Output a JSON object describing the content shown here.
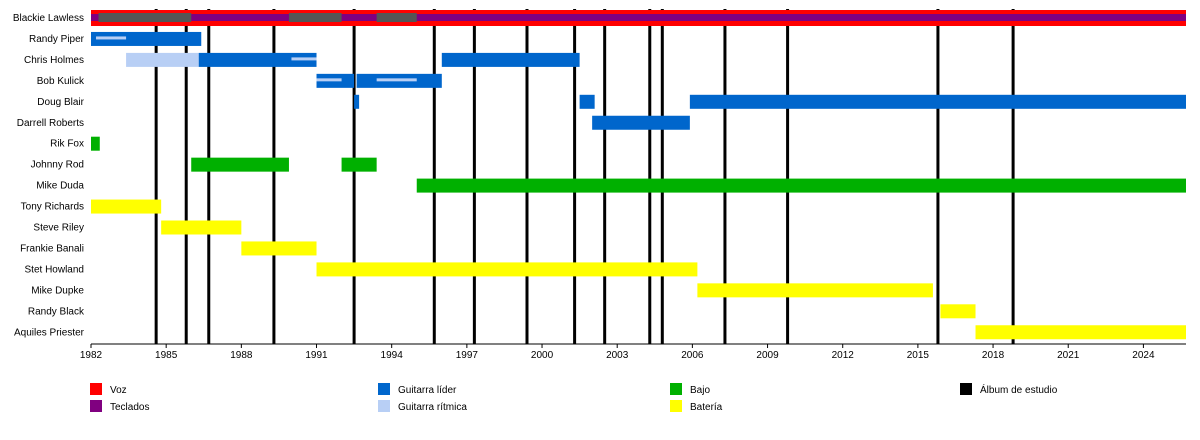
{
  "chart_data": {
    "type": "timeline",
    "title": "",
    "xlabel": "",
    "ylabel": "",
    "xlim": [
      1982,
      2025.7
    ],
    "x_ticks": [
      1982,
      1985,
      1988,
      1991,
      1994,
      1997,
      2000,
      2003,
      2006,
      2009,
      2012,
      2015,
      2018,
      2021,
      2024
    ],
    "grid": false,
    "legend_position": "bottom",
    "colors": {
      "voz": "#ff0000",
      "teclados": "#800080",
      "guitarra_lider": "#0066cc",
      "guitarra_ritmica": "#b8cff5",
      "bajo": "#00b000",
      "bateria": "#ffff00",
      "album": "#000000",
      "overlay": "#555555"
    },
    "members": [
      "Blackie Lawless",
      "Randy Piper",
      "Chris Holmes",
      "Bob Kulick",
      "Doug Blair",
      "Darrell Roberts",
      "Rik Fox",
      "Johnny Rod",
      "Mike Duda",
      "Tony Richards",
      "Steve Riley",
      "Frankie Banali",
      "Stet Howland",
      "Mike Dupke",
      "Randy Black",
      "Aquiles Priester"
    ],
    "bars": [
      {
        "member": "Blackie Lawless",
        "role": "voz",
        "start": 1982,
        "end": 2025.7,
        "layer": "outer"
      },
      {
        "member": "Blackie Lawless",
        "role": "teclados",
        "start": 1982,
        "end": 2025.7,
        "layer": "inner"
      },
      {
        "member": "Blackie Lawless",
        "role": "overlay",
        "start": 1982.3,
        "end": 1986.0,
        "layer": "thin"
      },
      {
        "member": "Blackie Lawless",
        "role": "overlay",
        "start": 1989.9,
        "end": 1992.0,
        "layer": "thin"
      },
      {
        "member": "Blackie Lawless",
        "role": "overlay",
        "start": 1993.4,
        "end": 1995.0,
        "layer": "thin"
      },
      {
        "member": "Randy Piper",
        "role": "guitarra_lider",
        "start": 1982,
        "end": 1986.4,
        "layer": "main"
      },
      {
        "member": "Randy Piper",
        "role": "guitarra_ritmica",
        "start": 1982.2,
        "end": 1983.4,
        "layer": "thin"
      },
      {
        "member": "Chris Holmes",
        "role": "guitarra_ritmica",
        "start": 1983.4,
        "end": 1986.3,
        "layer": "main"
      },
      {
        "member": "Chris Holmes",
        "role": "guitarra_lider",
        "start": 1986.3,
        "end": 1991.0,
        "layer": "main"
      },
      {
        "member": "Chris Holmes",
        "role": "guitarra_ritmica",
        "start": 1990.0,
        "end": 1991.0,
        "layer": "thin"
      },
      {
        "member": "Chris Holmes",
        "role": "guitarra_lider",
        "start": 1996.0,
        "end": 2001.5,
        "layer": "main"
      },
      {
        "member": "Bob Kulick",
        "role": "guitarra_lider",
        "start": 1991.0,
        "end": 1992.5,
        "layer": "main"
      },
      {
        "member": "Bob Kulick",
        "role": "guitarra_ritmica",
        "start": 1991.0,
        "end": 1992.0,
        "layer": "thin"
      },
      {
        "member": "Bob Kulick",
        "role": "guitarra_lider",
        "start": 1992.6,
        "end": 1996.0,
        "layer": "main"
      },
      {
        "member": "Bob Kulick",
        "role": "guitarra_ritmica",
        "start": 1993.4,
        "end": 1995.0,
        "layer": "thin"
      },
      {
        "member": "Doug Blair",
        "role": "guitarra_lider",
        "start": 1992.5,
        "end": 1992.7,
        "layer": "main"
      },
      {
        "member": "Doug Blair",
        "role": "guitarra_lider",
        "start": 2001.5,
        "end": 2002.1,
        "layer": "main"
      },
      {
        "member": "Doug Blair",
        "role": "guitarra_lider",
        "start": 2005.9,
        "end": 2025.7,
        "layer": "main"
      },
      {
        "member": "Darrell Roberts",
        "role": "guitarra_lider",
        "start": 2002.0,
        "end": 2005.9,
        "layer": "main"
      },
      {
        "member": "Rik Fox",
        "role": "bajo",
        "start": 1982,
        "end": 1982.35,
        "layer": "main"
      },
      {
        "member": "Johnny Rod",
        "role": "bajo",
        "start": 1986.0,
        "end": 1989.9,
        "layer": "main"
      },
      {
        "member": "Johnny Rod",
        "role": "bajo",
        "start": 1992.0,
        "end": 1993.4,
        "layer": "main"
      },
      {
        "member": "Mike Duda",
        "role": "bajo",
        "start": 1995.0,
        "end": 2025.7,
        "layer": "main"
      },
      {
        "member": "Tony Richards",
        "role": "bateria",
        "start": 1982,
        "end": 1984.8,
        "layer": "main"
      },
      {
        "member": "Steve Riley",
        "role": "bateria",
        "start": 1984.8,
        "end": 1988.0,
        "layer": "main"
      },
      {
        "member": "Frankie Banali",
        "role": "bateria",
        "start": 1988.0,
        "end": 1991.0,
        "layer": "main"
      },
      {
        "member": "Stet Howland",
        "role": "bateria",
        "start": 1991.0,
        "end": 2006.2,
        "layer": "main"
      },
      {
        "member": "Mike Dupke",
        "role": "bateria",
        "start": 2006.2,
        "end": 2015.6,
        "layer": "main"
      },
      {
        "member": "Randy Black",
        "role": "bateria",
        "start": 2015.9,
        "end": 2017.3,
        "layer": "main"
      },
      {
        "member": "Aquiles Priester",
        "role": "bateria",
        "start": 2017.3,
        "end": 2025.7,
        "layer": "main"
      }
    ],
    "albums": [
      1984.6,
      1985.8,
      1986.7,
      1989.3,
      1992.5,
      1995.7,
      1997.3,
      1999.4,
      2001.3,
      2002.5,
      2004.3,
      2004.8,
      2007.3,
      2009.8,
      2015.8,
      2018.8
    ],
    "legend": [
      {
        "key": "voz",
        "label": "Voz",
        "column": 0,
        "row": 0
      },
      {
        "key": "teclados",
        "label": "Teclados",
        "column": 0,
        "row": 1
      },
      {
        "key": "guitarra_lider",
        "label": "Guitarra líder",
        "column": 1,
        "row": 0
      },
      {
        "key": "guitarra_ritmica",
        "label": "Guitarra rítmica",
        "column": 1,
        "row": 1
      },
      {
        "key": "bajo",
        "label": "Bajo",
        "column": 2,
        "row": 0
      },
      {
        "key": "bateria",
        "label": "Batería",
        "column": 2,
        "row": 1
      },
      {
        "key": "album",
        "label": "Álbum de estudio",
        "column": 3,
        "row": 0
      }
    ]
  }
}
